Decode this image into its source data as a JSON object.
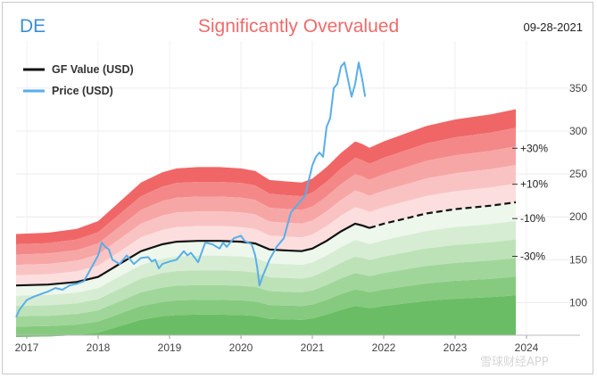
{
  "header": {
    "ticker": "DE",
    "title": "Significantly Overvalued",
    "date": "09-28-2021"
  },
  "watermark": "雪球财经APP",
  "colors": {
    "title": "#ee6b6b",
    "ticker": "#3a8fd8",
    "gf_line": "#111111",
    "price_line": "#5aaee8",
    "over": [
      "#f06666",
      "#f48888",
      "#f7a6a6",
      "#fac3c3",
      "#fcdede",
      "#fef0f0"
    ],
    "under": [
      "#eef7ec",
      "#d6edd3",
      "#bde2b8",
      "#a1d69b",
      "#86ca7f",
      "#6abd64"
    ]
  },
  "chart_data": {
    "type": "area",
    "title": "Significantly Overvalued",
    "xlabel": "",
    "ylabel": "",
    "xlim": [
      2016.85,
      2024.75
    ],
    "ylim": [
      62,
      405
    ],
    "x_ticks": [
      2017,
      2018,
      2019,
      2020,
      2021,
      2022,
      2023,
      2024
    ],
    "y_ticks": [
      100,
      150,
      200,
      250,
      300,
      350
    ],
    "legend": [
      {
        "name": "GF Value (USD)",
        "style": "black-line"
      },
      {
        "name": "Price (USD)",
        "style": "blue-line"
      }
    ],
    "legend_position": "top-left",
    "band_multipliers_over": [
      1.5,
      1.4,
      1.3,
      1.2,
      1.1,
      1.0
    ],
    "band_multipliers_under": [
      1.0,
      0.9,
      0.8,
      0.7,
      0.6,
      0.5
    ],
    "band_labels": [
      {
        "text": "+30%",
        "x": 2023.85,
        "y": 280
      },
      {
        "text": "+10%",
        "x": 2023.85,
        "y": 238
      },
      {
        "text": "-10%",
        "x": 2023.85,
        "y": 198
      },
      {
        "text": "-30%",
        "x": 2023.85,
        "y": 154
      }
    ],
    "gf_value": {
      "name": "GF Value (USD)",
      "x": [
        2016.85,
        2017.3,
        2017.7,
        2018.0,
        2018.3,
        2018.6,
        2018.9,
        2019.1,
        2019.4,
        2019.7,
        2020.0,
        2020.2,
        2020.4,
        2020.6,
        2020.85,
        2021.0,
        2021.2,
        2021.4,
        2021.6,
        2021.7,
        2021.8,
        2022.0,
        2022.3,
        2022.6,
        2023.0,
        2023.5,
        2023.85
      ],
      "y": [
        120,
        121,
        124,
        130,
        145,
        160,
        168,
        171,
        172,
        172,
        171,
        169,
        162,
        161,
        160,
        163,
        172,
        183,
        192,
        190,
        187,
        192,
        198,
        204,
        209,
        213,
        217
      ],
      "projected_from": 2021.8
    },
    "price": {
      "name": "Price (USD)",
      "x": [
        2016.85,
        2016.9,
        2017.0,
        2017.1,
        2017.2,
        2017.3,
        2017.4,
        2017.5,
        2017.6,
        2017.7,
        2017.8,
        2017.9,
        2018.0,
        2018.05,
        2018.1,
        2018.15,
        2018.2,
        2018.3,
        2018.4,
        2018.5,
        2018.6,
        2018.7,
        2018.75,
        2018.8,
        2018.85,
        2018.9,
        2019.0,
        2019.1,
        2019.2,
        2019.25,
        2019.3,
        2019.4,
        2019.5,
        2019.6,
        2019.7,
        2019.75,
        2019.8,
        2019.9,
        2020.0,
        2020.05,
        2020.1,
        2020.15,
        2020.2,
        2020.23,
        2020.26,
        2020.3,
        2020.35,
        2020.4,
        2020.5,
        2020.6,
        2020.7,
        2020.8,
        2020.9,
        2021.0,
        2021.05,
        2021.1,
        2021.15,
        2021.2,
        2021.25,
        2021.3,
        2021.35,
        2021.4,
        2021.45,
        2021.5,
        2021.55,
        2021.6,
        2021.65,
        2021.7,
        2021.74
      ],
      "y": [
        83,
        92,
        103,
        107,
        110,
        113,
        117,
        115,
        120,
        122,
        125,
        140,
        155,
        170,
        165,
        162,
        150,
        145,
        155,
        145,
        152,
        153,
        148,
        150,
        140,
        145,
        148,
        150,
        160,
        155,
        158,
        147,
        170,
        168,
        163,
        170,
        165,
        175,
        178,
        172,
        170,
        168,
        155,
        140,
        120,
        130,
        140,
        150,
        165,
        175,
        205,
        215,
        225,
        260,
        270,
        275,
        270,
        305,
        315,
        350,
        355,
        375,
        380,
        360,
        340,
        355,
        380,
        360,
        340
      ]
    }
  }
}
